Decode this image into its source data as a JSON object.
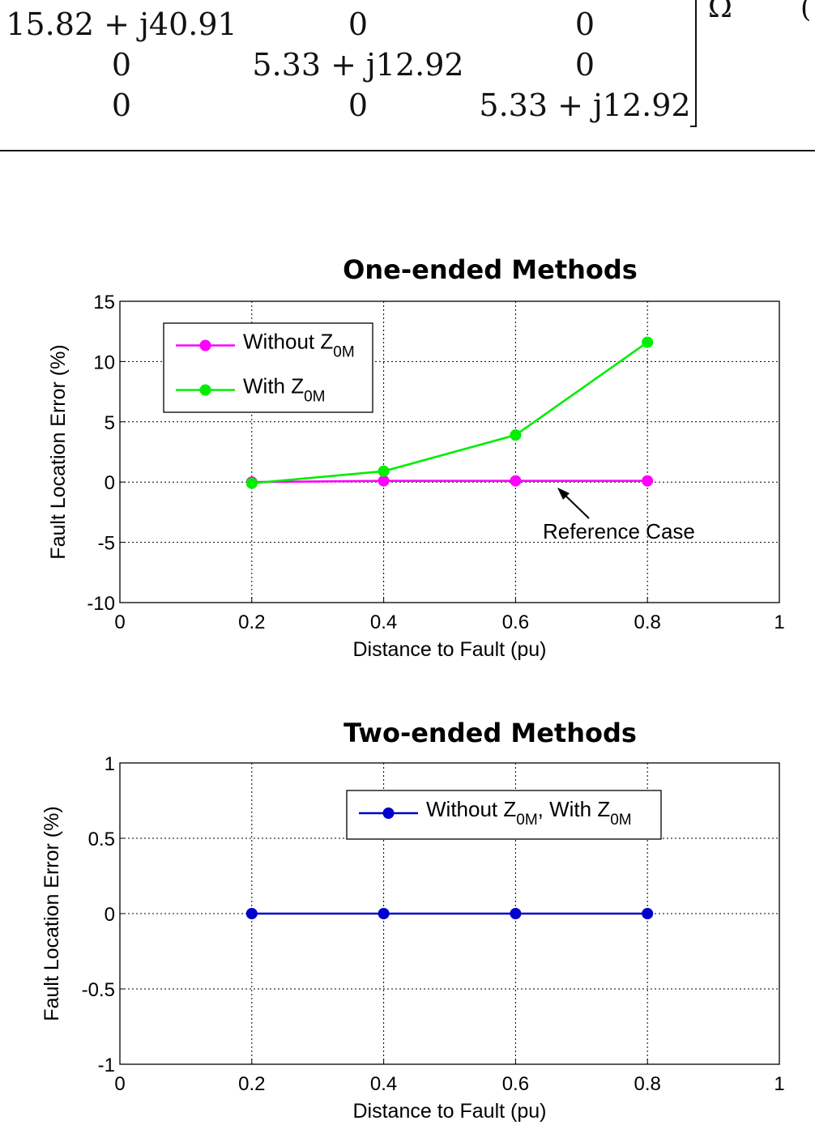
{
  "matrix": {
    "rows": [
      [
        "15.82 + j40.91",
        "0",
        "0"
      ],
      [
        "0",
        "5.33 + j12.92",
        "0"
      ],
      [
        "0",
        "0",
        "5.33 + j12.92"
      ]
    ],
    "unit": "Ω",
    "equation_number_fragment": "("
  },
  "chart_data": [
    {
      "type": "line",
      "title": "One-ended Methods",
      "xlabel": "Distance to Fault (pu)",
      "ylabel": "Fault Location Error (%)",
      "xlim": [
        0,
        1
      ],
      "ylim": [
        -10,
        15
      ],
      "xticks": [
        "0",
        "0.2",
        "0.4",
        "0.6",
        "0.8",
        "1"
      ],
      "yticks": [
        "15",
        "10",
        "5",
        "0",
        "-5",
        "-10"
      ],
      "x": [
        0.2,
        0.4,
        0.6,
        0.8
      ],
      "grid": true,
      "legend_position": "top-left",
      "series": [
        {
          "name": "Without Z",
          "name_sub": "0M",
          "color": "#ff00ff",
          "values": [
            0,
            0.1,
            0.1,
            0.1
          ]
        },
        {
          "name": "With Z",
          "name_sub": "0M",
          "color": "#00ee00",
          "values": [
            -0.1,
            0.9,
            3.9,
            11.6
          ]
        }
      ],
      "annotation": {
        "text": "Reference Case",
        "points_to": [
          0.65,
          0
        ]
      }
    },
    {
      "type": "line",
      "title": "Two-ended Methods",
      "xlabel": "Distance to Fault (pu)",
      "ylabel": "Fault Location Error (%)",
      "xlim": [
        0,
        1
      ],
      "ylim": [
        -1,
        1
      ],
      "xticks": [
        "0",
        "0.2",
        "0.4",
        "0.6",
        "0.8",
        "1"
      ],
      "yticks": [
        "1",
        "0.5",
        "0",
        "-0.5",
        "-1"
      ],
      "x": [
        0.2,
        0.4,
        0.6,
        0.8
      ],
      "grid": true,
      "legend_position": "top-right",
      "series": [
        {
          "name": "Without Z",
          "name_sub": "0M",
          "name2": ", With Z",
          "name2_sub": "0M",
          "color": "#0000cc",
          "values": [
            0,
            0,
            0,
            0
          ]
        }
      ]
    }
  ]
}
